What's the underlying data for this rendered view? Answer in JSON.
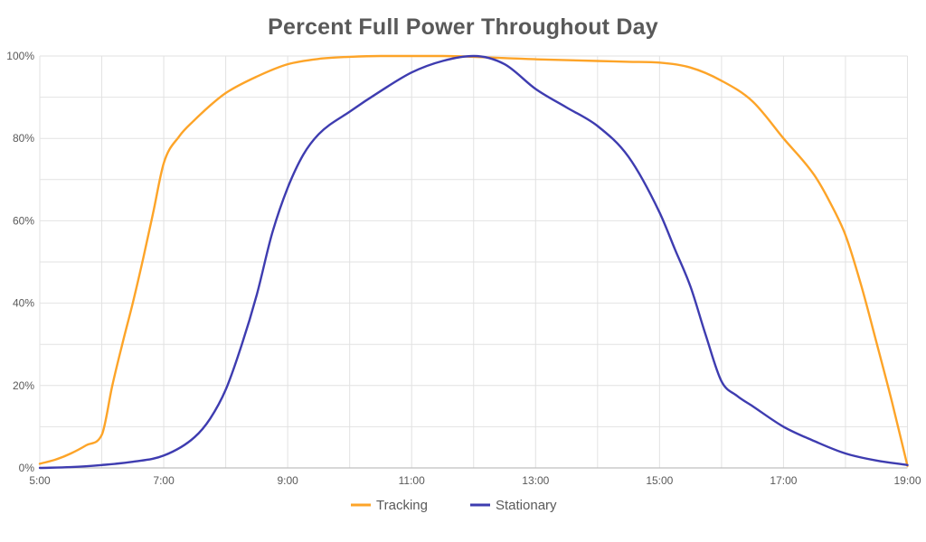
{
  "title": "Percent Full Power Throughout Day",
  "colors": {
    "tracking_line": "#FDA428",
    "stationary_line": "#3E3CB0",
    "text": "#595959",
    "gridline": "#E2E2E2",
    "axis_line": "#BFBFBF",
    "background": "#FFFFFF"
  },
  "legend": {
    "items": [
      {
        "label": "Tracking",
        "color": "#FDA428"
      },
      {
        "label": "Stationary",
        "color": "#3E3CB0"
      }
    ]
  },
  "chart_data": {
    "type": "line",
    "title": "Percent Full Power Throughout Day",
    "xlabel": "",
    "ylabel": "",
    "x_axis": {
      "unit": "time of day",
      "range_hours": [
        5,
        19
      ],
      "gridline_interval_hours": 1,
      "tick_values": [
        5,
        7,
        9,
        11,
        13,
        15,
        17,
        19
      ],
      "tick_labels": [
        "5:00",
        "7:00",
        "9:00",
        "11:00",
        "13:00",
        "15:00",
        "17:00",
        "19:00"
      ]
    },
    "y_axis": {
      "unit": "percent of full power",
      "range_percent": [
        0,
        100
      ],
      "gridline_interval_percent": 10,
      "tick_values": [
        0,
        20,
        40,
        60,
        80,
        100
      ],
      "tick_labels": [
        "0%",
        "20%",
        "40%",
        "60%",
        "80%",
        "100%"
      ]
    },
    "legend_position": "bottom-center",
    "grid": true,
    "series": [
      {
        "name": "Tracking",
        "color": "#FDA428",
        "points_hour_percent": [
          [
            5.0,
            1
          ],
          [
            5.25,
            2
          ],
          [
            5.5,
            3.5
          ],
          [
            5.75,
            5.5
          ],
          [
            6.0,
            8
          ],
          [
            6.17,
            20
          ],
          [
            6.33,
            30
          ],
          [
            6.5,
            40
          ],
          [
            6.67,
            51
          ],
          [
            6.83,
            62
          ],
          [
            7.0,
            74
          ],
          [
            7.25,
            80.5
          ],
          [
            7.5,
            84.5
          ],
          [
            7.75,
            88
          ],
          [
            8.0,
            91
          ],
          [
            8.5,
            95
          ],
          [
            9.0,
            98
          ],
          [
            9.5,
            99.3
          ],
          [
            10.0,
            99.8
          ],
          [
            10.5,
            100
          ],
          [
            11.0,
            100
          ],
          [
            11.5,
            100
          ],
          [
            12.0,
            99.8
          ],
          [
            12.5,
            99.5
          ],
          [
            13.0,
            99.2
          ],
          [
            13.5,
            99
          ],
          [
            14.0,
            98.8
          ],
          [
            14.5,
            98.6
          ],
          [
            15.0,
            98.4
          ],
          [
            15.5,
            97.2
          ],
          [
            16.0,
            94
          ],
          [
            16.5,
            89
          ],
          [
            17.0,
            80
          ],
          [
            17.5,
            71
          ],
          [
            17.75,
            64.5
          ],
          [
            18.0,
            56.5
          ],
          [
            18.25,
            44.5
          ],
          [
            18.5,
            30.5
          ],
          [
            18.75,
            16
          ],
          [
            19.0,
            0.5
          ]
        ]
      },
      {
        "name": "Stationary",
        "color": "#3E3CB0",
        "points_hour_percent": [
          [
            5.0,
            0
          ],
          [
            5.5,
            0.2
          ],
          [
            6.0,
            0.7
          ],
          [
            6.5,
            1.5
          ],
          [
            7.0,
            3
          ],
          [
            7.5,
            7.5
          ],
          [
            7.75,
            12
          ],
          [
            8.0,
            19
          ],
          [
            8.25,
            29.5
          ],
          [
            8.5,
            42
          ],
          [
            8.75,
            57
          ],
          [
            9.0,
            68
          ],
          [
            9.25,
            76
          ],
          [
            9.5,
            81
          ],
          [
            10.0,
            86.5
          ],
          [
            10.5,
            91.5
          ],
          [
            11.0,
            96
          ],
          [
            11.5,
            98.8
          ],
          [
            12.0,
            100
          ],
          [
            12.5,
            98
          ],
          [
            13.0,
            92
          ],
          [
            13.5,
            87.5
          ],
          [
            14.0,
            83
          ],
          [
            14.5,
            75.5
          ],
          [
            15.0,
            62
          ],
          [
            15.25,
            53
          ],
          [
            15.5,
            44
          ],
          [
            15.75,
            32
          ],
          [
            16.0,
            21
          ],
          [
            16.25,
            17.5
          ],
          [
            16.5,
            15
          ],
          [
            17.0,
            10
          ],
          [
            17.5,
            6.5
          ],
          [
            18.0,
            3.5
          ],
          [
            18.5,
            1.8
          ],
          [
            19.0,
            0.7
          ]
        ]
      }
    ]
  }
}
